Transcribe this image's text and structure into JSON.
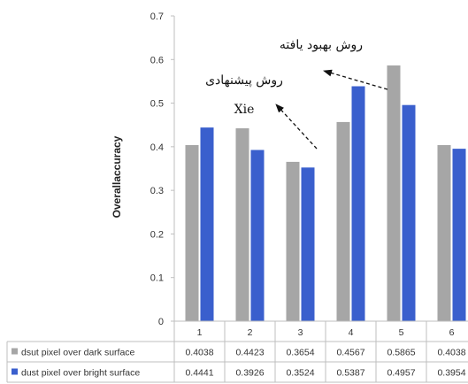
{
  "chart_data": {
    "type": "bar",
    "categories": [
      "1",
      "2",
      "3",
      "4",
      "5",
      "6"
    ],
    "ylabel": "Overallaccuracy",
    "ylim": [
      0,
      0.7
    ],
    "yticks": [
      0,
      0.1,
      0.2,
      0.3,
      0.4,
      0.5,
      0.6,
      0.7
    ],
    "grid": false,
    "legend_placement": "bottom-table",
    "series": [
      {
        "name": "dsut pixel over dark surface",
        "color": "#a6a6a6",
        "values": [
          0.4038,
          0.4423,
          0.3654,
          0.4567,
          0.5865,
          0.4038
        ],
        "labels": [
          "0.4038",
          "0.4423",
          "0.3654",
          "0.4567",
          "0.5865",
          "0.4038"
        ]
      },
      {
        "name": "dust pixel over bright surface",
        "color": "#3a5fcd",
        "values": [
          0.4441,
          0.3926,
          0.3524,
          0.5387,
          0.4957,
          0.3954
        ],
        "labels": [
          "0.4441",
          "0.3926",
          "0.3524",
          "0.5387",
          "0.4957",
          "0.3954"
        ]
      }
    ],
    "annotations": [
      {
        "line1": "روش بهبود یافته",
        "line2": ""
      },
      {
        "line1": "روش پیشنهادی",
        "line2": "Xie"
      }
    ]
  }
}
